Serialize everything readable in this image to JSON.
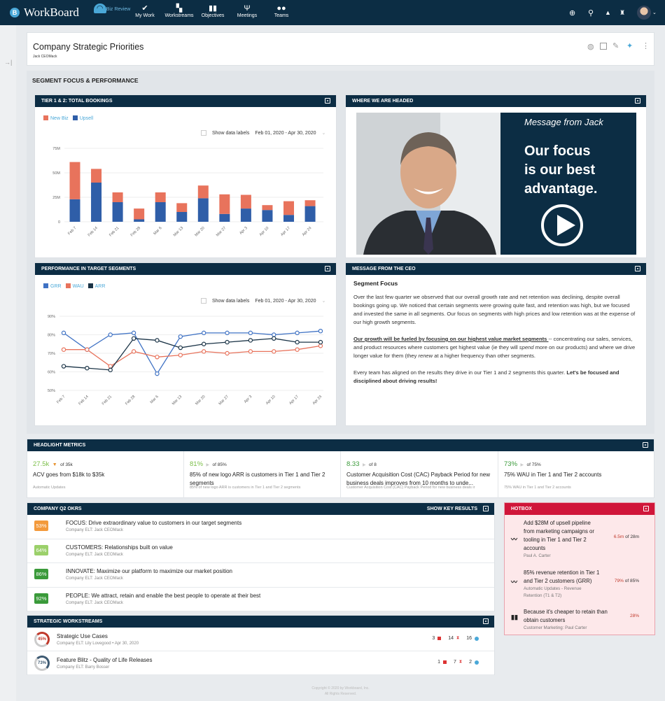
{
  "nav": {
    "brand": "WorkBoard",
    "items": [
      {
        "label": "Biz Review",
        "icon": "gauge-icon"
      },
      {
        "label": "My Work",
        "icon": "check-icon"
      },
      {
        "label": "Workstreams",
        "icon": "grid-icon"
      },
      {
        "label": "Objectives",
        "icon": "bar-chart-icon"
      },
      {
        "label": "Meetings",
        "icon": "meetings-icon"
      },
      {
        "label": "Teams",
        "icon": "teams-icon"
      }
    ]
  },
  "page": {
    "title": "Company Strategic Priorities",
    "owner": "Jack CEOMack"
  },
  "section": {
    "title": "SEGMENT FOCUS & PERFORMANCE"
  },
  "bookings": {
    "title": "TIER 1 & 2: TOTAL BOOKINGS",
    "show_labels": "Show data labels",
    "date_range": "Feb 01, 2020 - Apr 30, 2020"
  },
  "performance": {
    "title": "PERFORMANCE IN TARGET SEGMENTS",
    "show_labels": "Show data labels",
    "date_range": "Feb 01, 2020 - Apr 30, 2020"
  },
  "video": {
    "title": "WHERE WE ARE HEADED",
    "caption": "Message from Jack",
    "headline1": "Our focus",
    "headline2": "is our best",
    "headline3": "advantage."
  },
  "ceo": {
    "title": "MESSAGE FROM THE CEO",
    "heading": "Segment Focus",
    "p1": "Over the last few quarter we observed that our overall growth rate and net retention was declining, despite overall bookings going up. We noticed that certain segments were growing quite fast, and retention was high, but we focused and invested the same in all segments. Our focus on segments with high prices and low retention was at the expense of our high growth segments.",
    "p2_link": "Our growth will be fueled by focusing on our highest value market segments ",
    "p2_a": "-- concentrating our sales, services, and product resources where customers get highest value (ie they will ",
    "p2_em1": "spend",
    "p2_b": " more on our products) and where we drive longer value for them (they ",
    "p2_em2": "renew",
    "p2_c": " at a higher frequency than other segments.",
    "p3": "Every team has aligned on the results they drive in our Tier 1 and 2 segments this quarter. ",
    "p3_bold": "Let's be focused and disciplined about driving results!"
  },
  "headlight": {
    "title": "HEADLIGHT METRICS",
    "items": [
      {
        "value": "27.5k",
        "arrow": "▼",
        "target": "of 35k",
        "text": "ACV goes from $18k to $35k",
        "sub": "Automatic Updates"
      },
      {
        "value": "81%",
        "arrow": "▶",
        "target": "of 85%",
        "text": "85% of new logo ARR is customers in Tier 1 and Tier 2 segments",
        "sub": "85% of new logo ARR is customers in Tier 1 and Tier 2 segments"
      },
      {
        "value": "8.33",
        "arrow": "▶",
        "target": "of 8",
        "text": "Customer Acquisition Cost (CAC) Payback Period for new business deals improves from 10 months to unde...",
        "sub": "Customer Acquisition Cost (CAC) Payback Period for new business deals ir"
      },
      {
        "value": "73%",
        "arrow": "▶",
        "target": "of 75%",
        "text": "75% WAU in Tier 1 and Tier 2 accounts",
        "sub": "75% WAU in Tier 1 and Tier 2 accounts"
      }
    ]
  },
  "okrs": {
    "title": "COMPANY Q2 OKRS",
    "action": "SHOW KEY RESULTS",
    "items": [
      {
        "pct": "53%",
        "color": "#f39a3c",
        "text": "FOCUS: Drive extraordinary value to customers in our target segments",
        "owner": "Company ELT: Jack CEOMack"
      },
      {
        "pct": "64%",
        "color": "#9bd06a",
        "text": "CUSTOMERS: Relationships built on value",
        "owner": "Company ELT: Jack CEOMack"
      },
      {
        "pct": "86%",
        "color": "#3a9a3a",
        "text": "INNOVATE: Maximize our platform to maximize our market position",
        "owner": "Company ELT: Jack CEOMack"
      },
      {
        "pct": "92%",
        "color": "#3a9a3a",
        "text": "PEOPLE: We attract, retain and enable the best people to operate at their best",
        "owner": "Company ELT: Jack CEOMack"
      }
    ]
  },
  "workstreams": {
    "title": "STRATEGIC WORKSTREAMS",
    "items": [
      {
        "pct": "45%",
        "color": "#c0392b",
        "name": "Strategic Use Cases",
        "owner": "Company ELT: Lily Lovegood • Apr 30, 2020",
        "blocked": "3",
        "pending": "14",
        "done": "16"
      },
      {
        "pct": "73%",
        "color": "#3e5a72",
        "name": "Feature Blitz - Quality of Life Releases",
        "owner": "Company ELT: Barry Bosser",
        "blocked": "1",
        "pending": "7",
        "done": "2"
      }
    ]
  },
  "hotbox": {
    "title": "HOTBOX",
    "items": [
      {
        "icon": "trend-icon",
        "text": "Add $28M of upsell pipeline from marketing campaigns or tooling in Tier 1 and Tier 2 accounts",
        "owner": "Paul A. Carter",
        "value": "6.5m",
        "target": "of 28m"
      },
      {
        "icon": "trend-icon",
        "text": "85% revenue retention in Tier 1 and Tier 2 customers (GRR)",
        "owner": "Automatic Updates - Revenue Retention (T1 & T2)",
        "value": "79%",
        "target": "of 85%"
      },
      {
        "icon": "bars-icon",
        "text": "Because it's cheaper to retain than obtain customers",
        "owner": "Customer Marketing: Paul Carter",
        "value": "28%",
        "target": ""
      }
    ]
  },
  "footer": {
    "line1": "Copyright © 2020 by Workboard, Inc.",
    "line2": "All Rights Reserved."
  },
  "colors": {
    "navy": "#0c2d44",
    "new_biz": "#e8735c",
    "upsell": "#2f5ea8",
    "grr": "#3f72c4",
    "wau": "#e8735c",
    "arr": "#1b3447",
    "hotbox": "#d0163a"
  },
  "chart_data": [
    {
      "type": "bar",
      "stacked": true,
      "title": "TIER 1 & 2: TOTAL BOOKINGS",
      "categories": [
        "Feb 7",
        "Feb 14",
        "Feb 21",
        "Feb 28",
        "Mar 6",
        "Mar 13",
        "Mar 20",
        "Mar 27",
        "Apr 3",
        "Apr 10",
        "Apr 17",
        "Apr 24"
      ],
      "series": [
        {
          "name": "New Biz",
          "color": "#e8735c",
          "values": [
            38,
            14,
            10,
            11,
            10,
            9,
            13,
            20,
            14,
            5,
            14,
            6
          ]
        },
        {
          "name": "Upsell",
          "color": "#2f5ea8",
          "values": [
            23,
            40,
            20,
            2.5,
            20,
            10,
            24,
            8,
            13.5,
            12,
            7,
            16
          ]
        }
      ],
      "yticks": [
        "0",
        "25M",
        "50M",
        "75M"
      ],
      "ylim": [
        0,
        75
      ],
      "grid": true,
      "legend": "top-left"
    },
    {
      "type": "line",
      "title": "PERFORMANCE IN TARGET SEGMENTS",
      "categories": [
        "Feb 7",
        "Feb 14",
        "Feb 21",
        "Feb 28",
        "Mar 6",
        "Mar 13",
        "Mar 20",
        "Mar 27",
        "Apr 3",
        "Apr 10",
        "Apr 17",
        "Apr 24"
      ],
      "series": [
        {
          "name": "GRR",
          "color": "#3f72c4",
          "values": [
            81,
            72,
            80,
            81,
            59,
            79,
            81,
            81,
            81,
            80,
            81,
            82
          ]
        },
        {
          "name": "WAU",
          "color": "#e8735c",
          "values": [
            72,
            72,
            63,
            71,
            68,
            69,
            71,
            70,
            71,
            71,
            72,
            74
          ]
        },
        {
          "name": "ARR",
          "color": "#1b3447",
          "values": [
            63,
            62,
            61,
            78,
            77,
            73,
            75,
            76,
            77,
            78,
            76,
            76
          ]
        }
      ],
      "yticks": [
        "50%",
        "60%",
        "70%",
        "80%",
        "90%"
      ],
      "ylim": [
        50,
        90
      ],
      "grid": true,
      "legend": "top-left"
    }
  ]
}
